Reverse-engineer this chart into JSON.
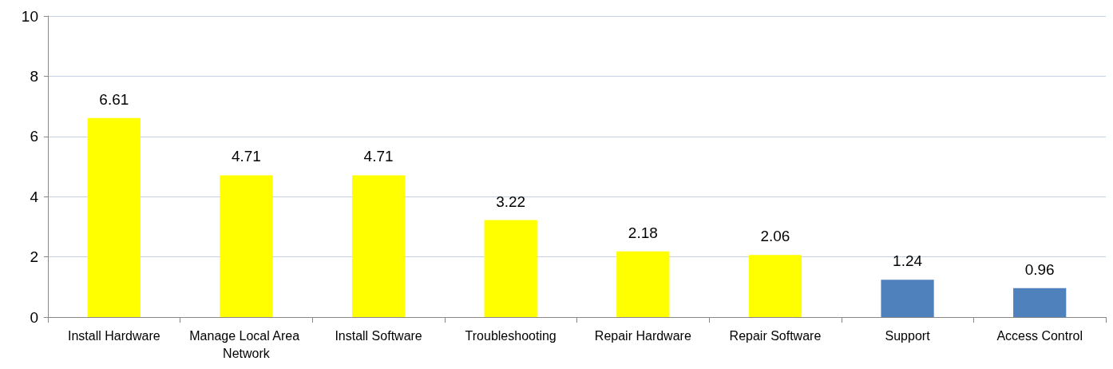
{
  "chart_data": {
    "type": "bar",
    "categories": [
      "Install Hardware",
      "Manage Local Area Network",
      "Install Software",
      "Troubleshooting",
      "Repair Hardware",
      "Repair Software",
      "Support",
      "Access Control"
    ],
    "values": [
      6.61,
      4.71,
      4.71,
      3.22,
      2.18,
      2.06,
      1.24,
      0.96
    ],
    "colors": [
      "#ffff00",
      "#ffff00",
      "#ffff00",
      "#ffff00",
      "#ffff00",
      "#ffff00",
      "#4f81bd",
      "#4f81bd"
    ],
    "ylim": [
      0,
      10
    ],
    "yticks": [
      0,
      2,
      4,
      6,
      8,
      10
    ],
    "grid": "y",
    "data_labels": true
  }
}
